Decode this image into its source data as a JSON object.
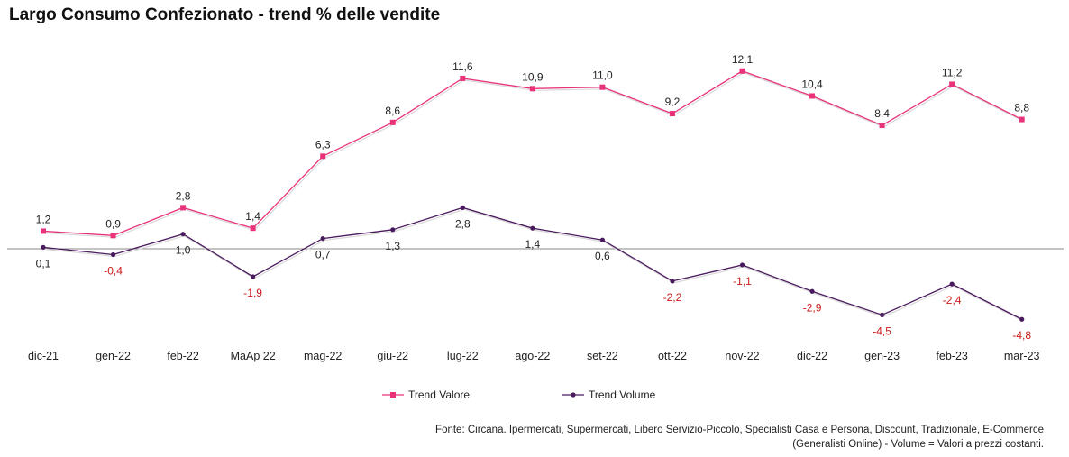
{
  "chart_data": {
    "type": "line",
    "title": "Largo Consumo Confezionato  - trend % delle vendite",
    "categories": [
      "dic-21",
      "gen-22",
      "feb-22",
      "MaAp 22",
      "mag-22",
      "giu-22",
      "lug-22",
      "ago-22",
      "set-22",
      "ott-22",
      "nov-22",
      "dic-22",
      "gen-23",
      "feb-23",
      "mar-23"
    ],
    "series": [
      {
        "name": "Trend Valore",
        "color": "#e8327a",
        "values": [
          1.2,
          0.9,
          2.8,
          1.4,
          6.3,
          8.6,
          11.6,
          10.9,
          11.0,
          9.2,
          12.1,
          10.4,
          8.4,
          11.2,
          8.8
        ],
        "labels": [
          "1,2",
          "0,9",
          "2,8",
          "1,4",
          "6,3",
          "8,6",
          "11,6",
          "10,9",
          "11,0",
          "9,2",
          "12,1",
          "10,4",
          "8,4",
          "11,2",
          "8,8"
        ]
      },
      {
        "name": "Trend Volume",
        "color": "#4a1a5e",
        "values": [
          0.1,
          -0.4,
          1.0,
          -1.9,
          0.7,
          1.3,
          2.8,
          1.4,
          0.6,
          -2.2,
          -1.1,
          -2.9,
          -4.5,
          -2.4,
          -4.8
        ],
        "labels": [
          "0,1",
          "-0,4",
          "1,0",
          "-1,9",
          "0,7",
          "1,3",
          "2,8",
          "1,4",
          "0,6",
          "-2,2",
          "-1,1",
          "-2,9",
          "-4,5",
          "-2,4",
          "-4,8"
        ]
      }
    ],
    "negative_label_color": "#cc1a1a",
    "legend_position": "bottom",
    "grid": false,
    "ylim": [
      -5.5,
      13
    ]
  },
  "source_note": "Fonte: Circana. Ipermercati, Supermercati, Libero Servizio-Piccolo,  Specialisti Casa e Persona, Discount, Tradizionale, E-Commerce (Generalisti Online) -  Volume =  Valori a prezzi costanti."
}
